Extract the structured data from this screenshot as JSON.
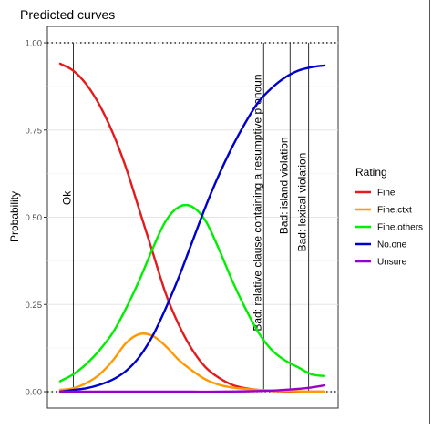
{
  "chart_data": {
    "type": "line",
    "title": "Predicted curves",
    "xlabel": "",
    "ylabel": "Probability",
    "ylim": [
      0,
      1
    ],
    "y_ticks": [
      "0.00",
      "0.25",
      "0.50",
      "0.75",
      "1.00"
    ],
    "y_tick_values": [
      0,
      0.25,
      0.5,
      0.75,
      1
    ],
    "x_range": [
      0,
      1
    ],
    "grid": true,
    "legend": {
      "title": "Rating",
      "position": "right"
    },
    "reference_hlines": [
      0,
      1
    ],
    "series": [
      {
        "name": "Fine",
        "color": "#e41a1c",
        "x": [
          0,
          0.05,
          0.1,
          0.15,
          0.2,
          0.25,
          0.3,
          0.35,
          0.4,
          0.45,
          0.5,
          0.55,
          0.6,
          0.65,
          0.7,
          0.75,
          0.8,
          0.85,
          0.9,
          0.95,
          1
        ],
        "y": [
          0.94,
          0.92,
          0.88,
          0.82,
          0.74,
          0.64,
          0.52,
          0.4,
          0.28,
          0.19,
          0.12,
          0.07,
          0.04,
          0.02,
          0.01,
          0.005,
          0.002,
          0.001,
          0,
          0,
          0
        ]
      },
      {
        "name": "Fine.ctxt",
        "color": "#ff9900",
        "x": [
          0,
          0.05,
          0.1,
          0.15,
          0.2,
          0.25,
          0.3,
          0.35,
          0.4,
          0.45,
          0.5,
          0.55,
          0.6,
          0.65,
          0.7,
          0.75,
          0.8,
          0.85,
          0.9,
          0.95,
          1
        ],
        "y": [
          0.005,
          0.01,
          0.025,
          0.05,
          0.09,
          0.14,
          0.165,
          0.16,
          0.13,
          0.09,
          0.06,
          0.035,
          0.02,
          0.012,
          0.008,
          0.005,
          0.003,
          0.002,
          0.001,
          0,
          0
        ]
      },
      {
        "name": "Fine.others",
        "color": "#00ee00",
        "x": [
          0,
          0.05,
          0.1,
          0.15,
          0.2,
          0.25,
          0.3,
          0.35,
          0.4,
          0.45,
          0.5,
          0.55,
          0.6,
          0.65,
          0.7,
          0.75,
          0.8,
          0.85,
          0.9,
          0.95,
          1
        ],
        "y": [
          0.03,
          0.05,
          0.08,
          0.12,
          0.17,
          0.24,
          0.32,
          0.41,
          0.49,
          0.53,
          0.53,
          0.49,
          0.41,
          0.32,
          0.24,
          0.17,
          0.12,
          0.09,
          0.07,
          0.05,
          0.045
        ]
      },
      {
        "name": "No.one",
        "color": "#0000cc",
        "x": [
          0,
          0.05,
          0.1,
          0.15,
          0.2,
          0.25,
          0.3,
          0.35,
          0.4,
          0.45,
          0.5,
          0.55,
          0.6,
          0.65,
          0.7,
          0.75,
          0.8,
          0.85,
          0.9,
          0.95,
          1
        ],
        "y": [
          0,
          0.005,
          0.01,
          0.02,
          0.035,
          0.06,
          0.1,
          0.16,
          0.24,
          0.33,
          0.43,
          0.53,
          0.62,
          0.7,
          0.77,
          0.83,
          0.87,
          0.9,
          0.92,
          0.93,
          0.935
        ]
      },
      {
        "name": "Unsure",
        "color": "#9900cc",
        "x": [
          0,
          0.1,
          0.2,
          0.3,
          0.4,
          0.5,
          0.6,
          0.7,
          0.8,
          0.9,
          0.95,
          1
        ],
        "y": [
          0,
          0,
          0,
          0,
          0,
          0,
          0,
          0.001,
          0.003,
          0.008,
          0.012,
          0.018
        ]
      }
    ],
    "annotations": [
      {
        "label": "Ok",
        "x": 0.05
      },
      {
        "label": "Bad: relative clause containing a resumptive pronoun",
        "x": 0.77
      },
      {
        "label": "Bad: island violation",
        "x": 0.87
      },
      {
        "label": "Bad: lexical violation",
        "x": 0.94
      }
    ]
  }
}
